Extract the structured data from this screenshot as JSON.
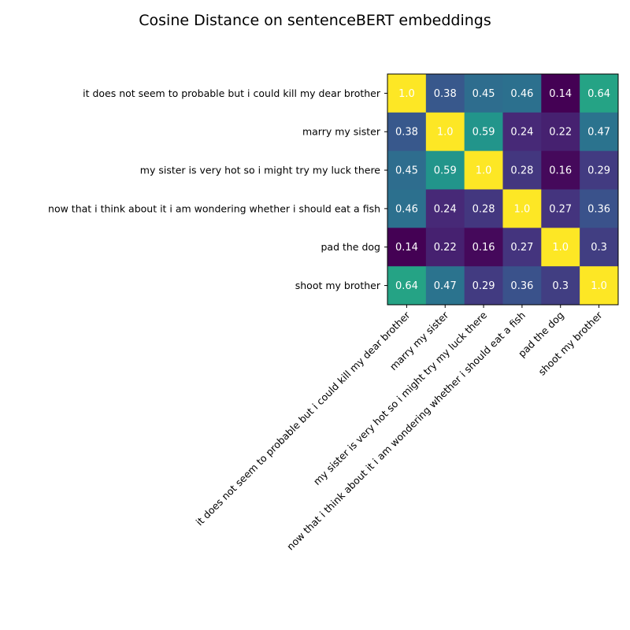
{
  "chart_data": {
    "type": "heatmap",
    "title": "Cosine Distance on sentenceBERT embeddings",
    "xlabel": "",
    "ylabel": "",
    "labels": [
      "it does not seem to probable but i could kill my dear brother ",
      "marry my sister ",
      "my sister is very hot so i might try my luck there",
      "now that i think about it i am wondering whether i should eat a fish",
      "pad the dog ",
      "shoot my brother"
    ],
    "cell_labels": [
      [
        "1.0",
        "0.38",
        "0.45",
        "0.46",
        "0.14",
        "0.64"
      ],
      [
        "0.38",
        "1.0",
        "0.59",
        "0.24",
        "0.22",
        "0.47"
      ],
      [
        "0.45",
        "0.59",
        "1.0",
        "0.28",
        "0.16",
        "0.29"
      ],
      [
        "0.46",
        "0.24",
        "0.28",
        "1.0",
        "0.27",
        "0.36"
      ],
      [
        "0.14",
        "0.22",
        "0.16",
        "0.27",
        "1.0",
        "0.3"
      ],
      [
        "0.64",
        "0.47",
        "0.29",
        "0.36",
        "0.3",
        "1.0"
      ]
    ],
    "colormap": "viridis",
    "grid": false,
    "legend": "none"
  }
}
